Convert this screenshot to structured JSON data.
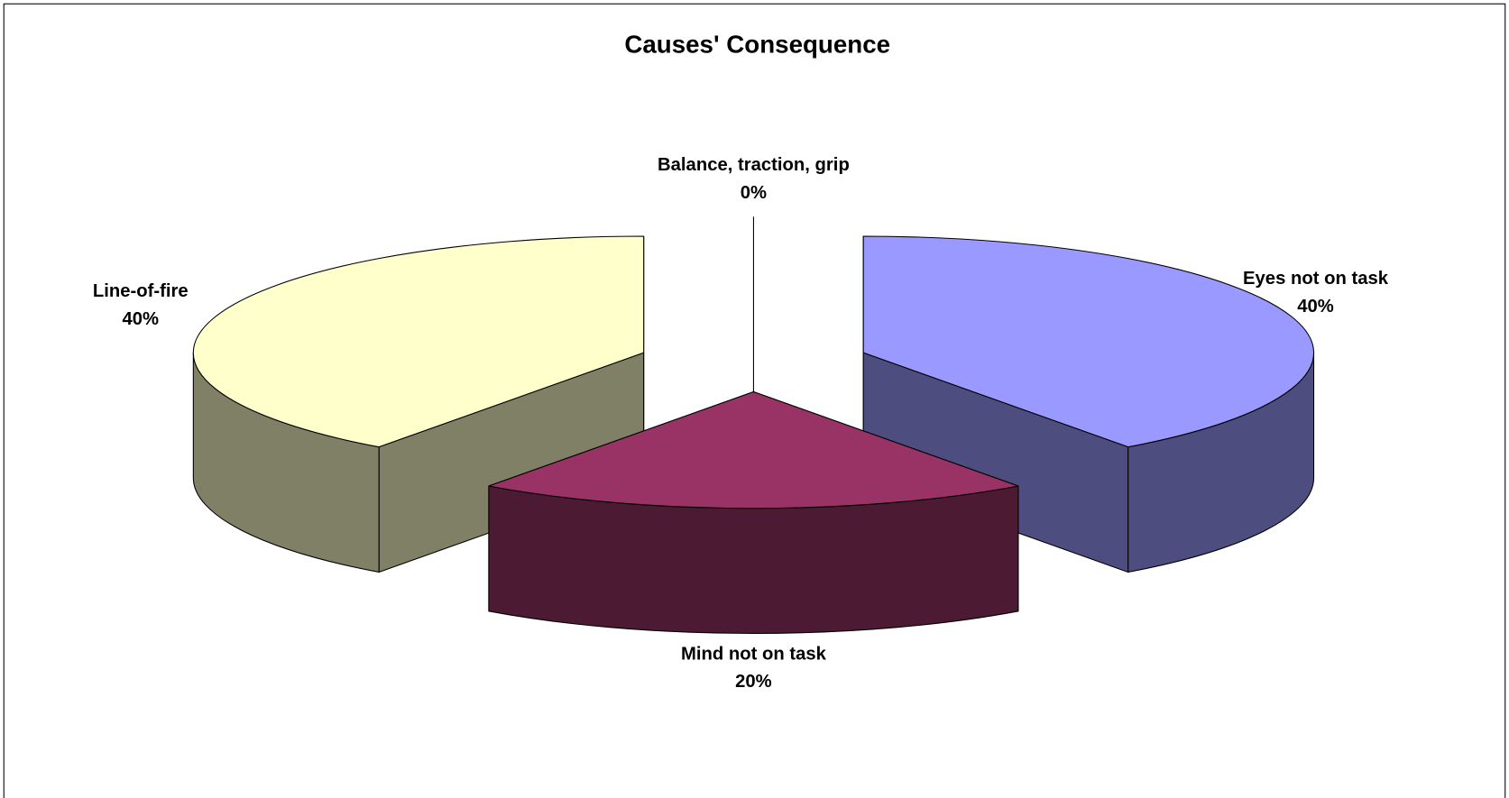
{
  "chart_data": {
    "type": "pie",
    "title": "Causes' Consequence",
    "categories": [
      "Eyes not on task",
      "Mind not on task",
      "Line-of-fire",
      "Balance, traction, grip"
    ],
    "values": [
      40,
      20,
      40,
      0
    ],
    "value_labels": [
      "40%",
      "20%",
      "40%",
      "0%"
    ],
    "colors": [
      "#9999ff",
      "#993366",
      "#ffffcc",
      "#ccffff"
    ],
    "three_d": true,
    "exploded": true
  }
}
